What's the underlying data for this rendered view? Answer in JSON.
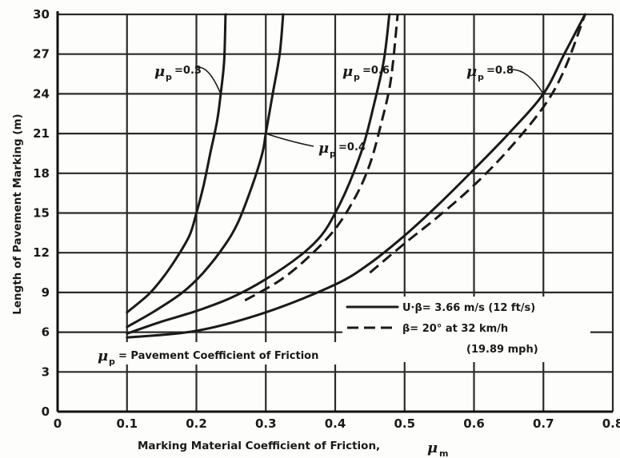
{
  "chart_data": {
    "type": "line",
    "xlabel": "Marking Material Coefficient of Friction,",
    "xlabel_symbol": "μ",
    "xlabel_sub": "m",
    "ylabel": "Length of Pavement Marking (m)",
    "xlim": [
      0,
      0.8
    ],
    "ylim": [
      0,
      30
    ],
    "x_ticks": [
      "0",
      "0.1",
      "0.2",
      "0.3",
      "0.4",
      "0.5",
      "0.6",
      "0.7",
      "0.8"
    ],
    "y_ticks": [
      "0",
      "3",
      "6",
      "9",
      "12",
      "15",
      "18",
      "21",
      "24",
      "27",
      "30"
    ],
    "grid": true,
    "series": [
      {
        "name": "μp=0.3",
        "style": "solid",
        "points": [
          [
            0.1,
            7.5
          ],
          [
            0.13,
            8.8
          ],
          [
            0.15,
            10
          ],
          [
            0.17,
            11.5
          ],
          [
            0.19,
            13.3
          ],
          [
            0.2,
            15
          ],
          [
            0.21,
            17
          ],
          [
            0.22,
            19.5
          ],
          [
            0.23,
            22
          ],
          [
            0.235,
            24
          ],
          [
            0.24,
            26.5
          ],
          [
            0.242,
            30
          ]
        ]
      },
      {
        "name": "μp=0.4",
        "style": "solid",
        "points": [
          [
            0.1,
            6.4
          ],
          [
            0.14,
            7.6
          ],
          [
            0.18,
            9
          ],
          [
            0.21,
            10.5
          ],
          [
            0.24,
            12.5
          ],
          [
            0.26,
            14.3
          ],
          [
            0.28,
            17
          ],
          [
            0.295,
            19.5
          ],
          [
            0.3,
            21
          ],
          [
            0.31,
            24
          ],
          [
            0.32,
            27
          ],
          [
            0.325,
            30
          ]
        ]
      },
      {
        "name": "μp=0.6",
        "style": "solid",
        "points": [
          [
            0.1,
            5.9
          ],
          [
            0.15,
            6.8
          ],
          [
            0.2,
            7.6
          ],
          [
            0.25,
            8.6
          ],
          [
            0.3,
            10
          ],
          [
            0.35,
            11.8
          ],
          [
            0.38,
            13.3
          ],
          [
            0.4,
            15
          ],
          [
            0.42,
            17.2
          ],
          [
            0.44,
            20
          ],
          [
            0.455,
            23
          ],
          [
            0.47,
            26.5
          ],
          [
            0.478,
            30
          ]
        ]
      },
      {
        "name": "β=20° at 32 km/h (19.89 mph), μp=0.6",
        "style": "dashed",
        "points": [
          [
            0.27,
            8.4
          ],
          [
            0.32,
            9.9
          ],
          [
            0.36,
            11.6
          ],
          [
            0.4,
            13.8
          ],
          [
            0.43,
            16.3
          ],
          [
            0.45,
            18.7
          ],
          [
            0.465,
            21.5
          ],
          [
            0.48,
            25
          ],
          [
            0.49,
            30
          ]
        ]
      },
      {
        "name": "μp=0.8",
        "style": "solid",
        "points": [
          [
            0.1,
            5.6
          ],
          [
            0.2,
            6.1
          ],
          [
            0.3,
            7.5
          ],
          [
            0.4,
            9.6
          ],
          [
            0.45,
            11.2
          ],
          [
            0.5,
            13.3
          ],
          [
            0.55,
            15.7
          ],
          [
            0.6,
            18.3
          ],
          [
            0.65,
            21
          ],
          [
            0.7,
            24
          ],
          [
            0.73,
            27
          ],
          [
            0.76,
            30
          ]
        ]
      },
      {
        "name": "β=20° at 32 km/h (19.89 mph), μp=0.8",
        "style": "dashed",
        "points": [
          [
            0.45,
            10.5
          ],
          [
            0.5,
            12.7
          ],
          [
            0.55,
            14.8
          ],
          [
            0.6,
            17.1
          ],
          [
            0.65,
            19.8
          ],
          [
            0.7,
            23
          ],
          [
            0.73,
            25.8
          ],
          [
            0.76,
            30
          ]
        ]
      }
    ]
  },
  "annotations": {
    "label_03": "=0.3",
    "label_04": "=0.4",
    "label_06": "=0.6",
    "label_08": "=0.8",
    "mu": "μ",
    "sub_p": "p",
    "pavement_note": "= Pavement Coefficient of Friction",
    "legend_solid": "U·β= 3.66 m/s  (12 ft/s)",
    "legend_dashed_1": "β= 20°  at 32 km/h",
    "legend_dashed_2": "(19.89  mph)"
  }
}
